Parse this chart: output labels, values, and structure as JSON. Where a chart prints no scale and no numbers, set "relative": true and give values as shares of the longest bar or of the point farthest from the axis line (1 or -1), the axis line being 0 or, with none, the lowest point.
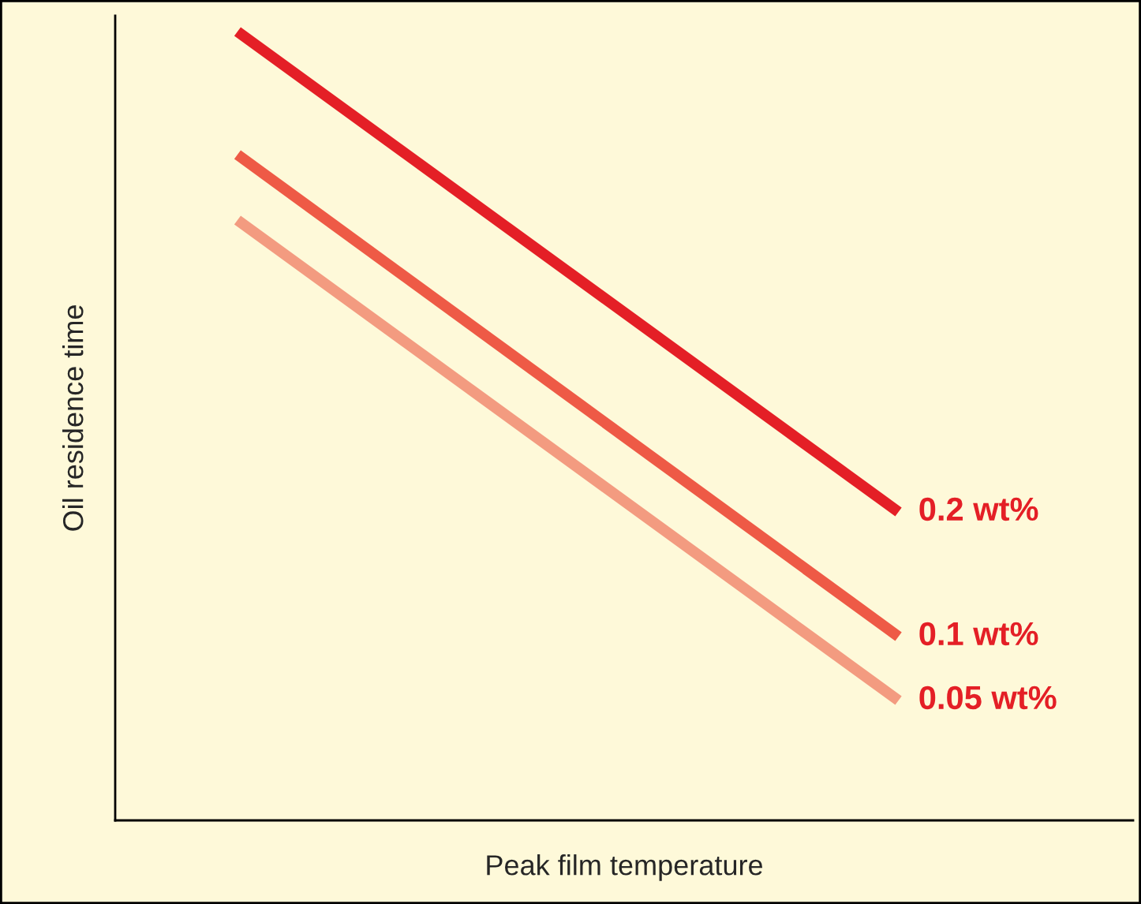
{
  "chart_data": {
    "type": "line",
    "relative": true,
    "xlabel": "Peak film temperature",
    "ylabel": "Oil residence time",
    "categories": [
      null,
      null
    ],
    "series": [
      {
        "name": "0.2 wt%",
        "color": "#e41f26",
        "values": [
          1,
          0.391
        ]
      },
      {
        "name": "0.1 wt%",
        "color": "#ee5a46",
        "values": [
          0.844,
          0.233
        ]
      },
      {
        "name": "0.05 wt%",
        "color": "#f39b80",
        "values": [
          0.761,
          0.152
        ]
      }
    ],
    "grid": false,
    "legend": false,
    "marker": "none",
    "line_style": "solid"
  }
}
